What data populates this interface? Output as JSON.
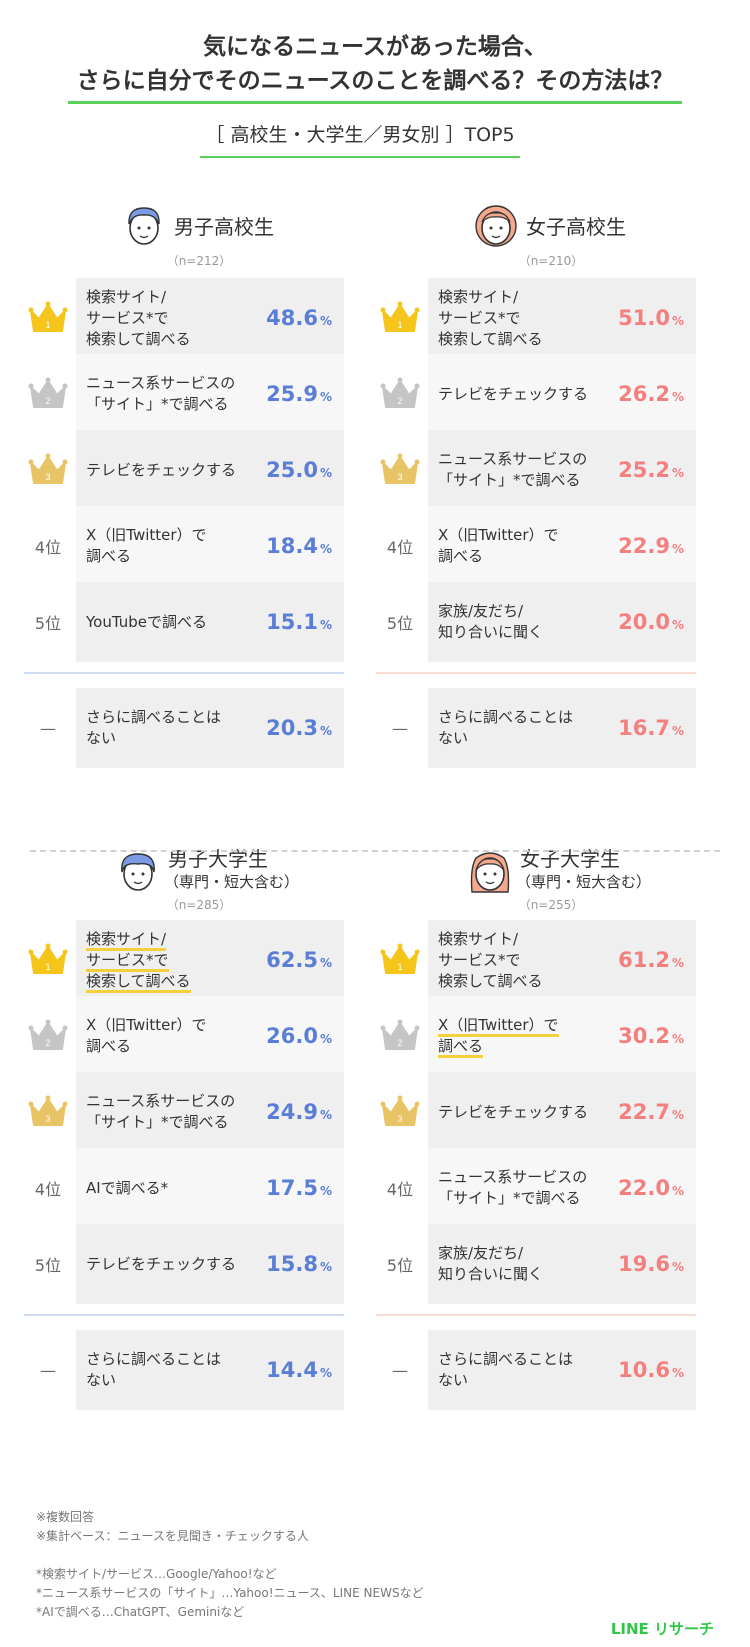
{
  "title": {
    "line1": "気になるニュースがあった場合、",
    "line2": "さらに自分でそのニュースのことを調べる？その方法は？"
  },
  "subtitle": "［ 高校生・大学生／男女別 ］TOP5",
  "colors": {
    "male": "#5a7ed6",
    "female": "#f47f7f",
    "gold": "#f6c51b",
    "silver": "#c5c5c5",
    "bronze": "#e9c466",
    "accent": "#5ad15a",
    "highlight": "#f2d13c"
  },
  "chart_data": [
    {
      "type": "table",
      "group": "男子高校生",
      "n": "（n=212）",
      "ranks": [
        "1",
        "2",
        "3",
        "4位",
        "5位"
      ],
      "items": [
        {
          "label": "検索サイト/\nサービス*で\n検索して調べる",
          "value": 48.6
        },
        {
          "label": "ニュース系サービスの\n「サイト」*で調べる",
          "value": 25.9
        },
        {
          "label": "テレビをチェックする",
          "value": 25.0
        },
        {
          "label": "X（旧Twitter）で\n調べる",
          "value": 18.4
        },
        {
          "label": "YouTubeで調べる",
          "value": 15.1
        }
      ],
      "none": {
        "rank": "—",
        "label": "さらに調べることは\nない",
        "value": 20.3
      }
    },
    {
      "type": "table",
      "group": "女子高校生",
      "n": "（n=210）",
      "ranks": [
        "1",
        "2",
        "3",
        "4位",
        "5位"
      ],
      "items": [
        {
          "label": "検索サイト/\nサービス*で\n検索して調べる",
          "value": 51.0
        },
        {
          "label": "テレビをチェックする",
          "value": 26.2
        },
        {
          "label": "ニュース系サービスの\n「サイト」*で調べる",
          "value": 25.2
        },
        {
          "label": "X（旧Twitter）で\n調べる",
          "value": 22.9
        },
        {
          "label": "家族/友だち/\n知り合いに聞く",
          "value": 20.0
        }
      ],
      "none": {
        "rank": "—",
        "label": "さらに調べることは\nない",
        "value": 16.7
      }
    },
    {
      "type": "table",
      "group": "男子大学生",
      "group_note": "（専門・短大含む）",
      "n": "（n=285）",
      "ranks": [
        "1",
        "2",
        "3",
        "4位",
        "5位"
      ],
      "items": [
        {
          "label": "検索サイト/\nサービス*で\n検索して調べる",
          "value": 62.5,
          "highlight": true
        },
        {
          "label": "X（旧Twitter）で\n調べる",
          "value": 26.0
        },
        {
          "label": "ニュース系サービスの\n「サイト」*で調べる",
          "value": 24.9
        },
        {
          "label": "AIで調べる*",
          "value": 17.5
        },
        {
          "label": "テレビをチェックする",
          "value": 15.8
        }
      ],
      "none": {
        "rank": "—",
        "label": "さらに調べることは\nない",
        "value": 14.4
      }
    },
    {
      "type": "table",
      "group": "女子大学生",
      "group_note": "（専門・短大含む）",
      "n": "（n=255）",
      "ranks": [
        "1",
        "2",
        "3",
        "4位",
        "5位"
      ],
      "items": [
        {
          "label": "検索サイト/\nサービス*で\n検索して調べる",
          "value": 61.2
        },
        {
          "label": "X（旧Twitter）で\n調べる",
          "value": 30.2,
          "highlight": true
        },
        {
          "label": "テレビをチェックする",
          "value": 22.7
        },
        {
          "label": "ニュース系サービスの\n「サイト」*で調べる",
          "value": 22.0
        },
        {
          "label": "家族/友だち/\n知り合いに聞く",
          "value": 19.6
        }
      ],
      "none": {
        "rank": "—",
        "label": "さらに調べることは\nない",
        "value": 10.6
      }
    }
  ],
  "percent_unit": "%",
  "notes": [
    "※複数回答",
    "※集計ベース：ニュースを見聞き・チェックする人",
    "",
    "*検索サイト/サービス…Google/Yahoo!など",
    "*ニュース系サービスの「サイト」…Yahoo!ニュース、LINE NEWSなど",
    "*AIで調べる…ChatGPT、Geminiなど"
  ],
  "brand": "LINE リサーチ"
}
